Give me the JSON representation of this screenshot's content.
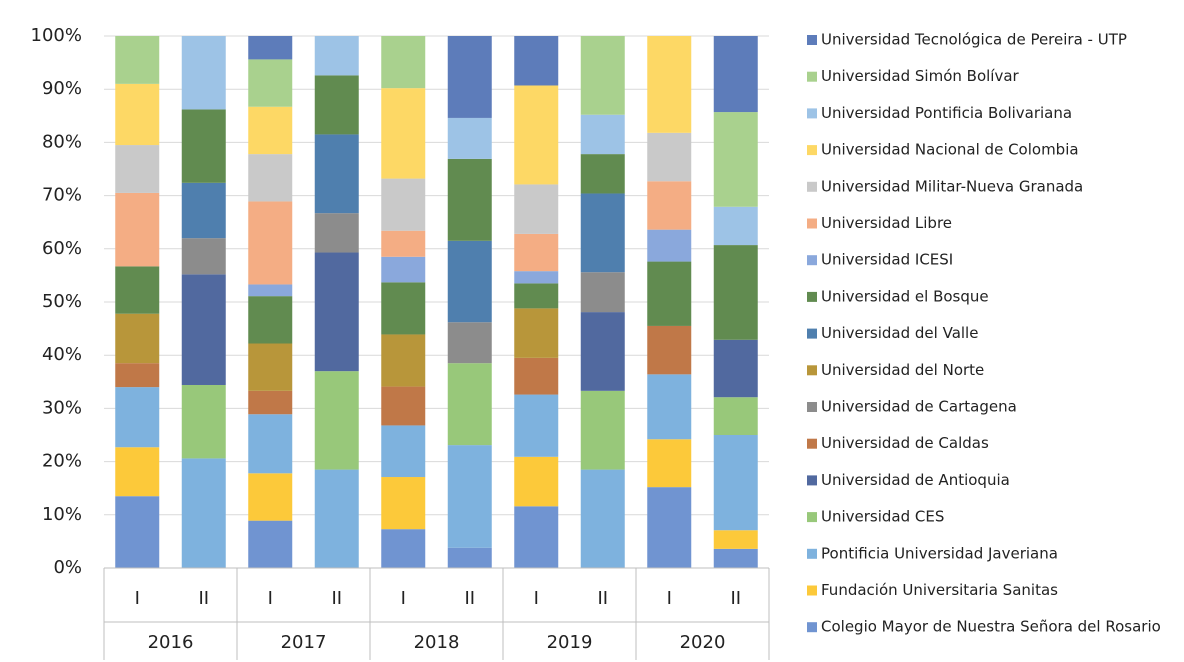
{
  "chart_data": {
    "type": "stacked-bar-100",
    "categories": [
      "I",
      "II",
      "I",
      "II",
      "I",
      "II",
      "I",
      "II",
      "I",
      "II"
    ],
    "groups": [
      "2016",
      "2017",
      "2018",
      "2019",
      "2020"
    ],
    "ylim": [
      0,
      100
    ],
    "yticks": [
      {
        "value": 0,
        "label": "0%"
      },
      {
        "value": 10,
        "label": "10%"
      },
      {
        "value": 20,
        "label": "20%"
      },
      {
        "value": 30,
        "label": "30%"
      },
      {
        "value": 40,
        "label": "40%"
      },
      {
        "value": 50,
        "label": "50%"
      },
      {
        "value": 60,
        "label": "60%"
      },
      {
        "value": 70,
        "label": "70%"
      },
      {
        "value": 80,
        "label": "80%"
      },
      {
        "value": 90,
        "label": "90%"
      },
      {
        "value": 100,
        "label": "100%"
      }
    ],
    "grid": true,
    "legend": "right",
    "series": [
      {
        "name": "Colegio Mayor de Nuestra Señora del Rosario",
        "color": "#7094d1",
        "values": [
          13.5,
          0,
          8.9,
          0,
          7.3,
          3.8,
          11.6,
          0,
          15.2,
          3.6
        ]
      },
      {
        "name": "Fundación Universitaria Sanitas",
        "color": "#fcc93a",
        "values": [
          9.2,
          0,
          8.9,
          0,
          9.8,
          0,
          9.3,
          0,
          9,
          3.5
        ]
      },
      {
        "name": "Pontificia Universidad Javeriana",
        "color": "#7eb2de",
        "values": [
          11.3,
          20.6,
          11.1,
          18.5,
          9.7,
          19.3,
          11.7,
          18.5,
          12.2,
          17.9
        ]
      },
      {
        "name": "Universidad CES",
        "color": "#98c87a",
        "values": [
          0,
          13.8,
          0,
          18.5,
          0,
          15.4,
          0,
          14.8,
          0,
          7.1
        ]
      },
      {
        "name": "Universidad de Antioquia",
        "color": "#51699f",
        "values": [
          0,
          20.8,
          0,
          22.3,
          0,
          0,
          0,
          14.8,
          0,
          10.8
        ]
      },
      {
        "name": "Universidad de Caldas",
        "color": "#c07848",
        "values": [
          4.5,
          0,
          4.4,
          0,
          7.3,
          0,
          6.9,
          0,
          9.1,
          0
        ]
      },
      {
        "name": "Universidad de Cartagena",
        "color": "#8c8c8c",
        "values": [
          0,
          6.8,
          0,
          7.4,
          0,
          7.7,
          0,
          7.5,
          0,
          0
        ]
      },
      {
        "name": "Universidad del Norte",
        "color": "#b8963a",
        "values": [
          9.3,
          0,
          8.9,
          0,
          9.8,
          0,
          9.3,
          0,
          0,
          0
        ]
      },
      {
        "name": "Universidad del Valle",
        "color": "#4f7fae",
        "values": [
          0,
          10.4,
          0,
          14.8,
          0,
          15.3,
          0,
          14.8,
          0,
          0
        ]
      },
      {
        "name": "Universidad el Bosque",
        "color": "#618b50",
        "values": [
          8.9,
          13.8,
          8.9,
          11.1,
          9.8,
          15.4,
          4.7,
          7.4,
          12.1,
          17.8
        ]
      },
      {
        "name": "Universidad ICESI",
        "color": "#8aa8dc",
        "values": [
          0,
          0,
          2.2,
          0,
          4.8,
          0,
          2.3,
          0,
          6,
          0
        ]
      },
      {
        "name": "Universidad Libre",
        "color": "#f4ad84",
        "values": [
          13.8,
          0,
          15.6,
          0,
          4.9,
          0,
          7,
          0,
          9.1,
          0
        ]
      },
      {
        "name": "Universidad Militar-Nueva Granada",
        "color": "#c9c9c9",
        "values": [
          9,
          0,
          8.9,
          0,
          9.8,
          0,
          9.3,
          0,
          9.1,
          0
        ]
      },
      {
        "name": "Universidad Nacional de Colombia",
        "color": "#fdd865",
        "values": [
          11.5,
          0,
          8.9,
          0,
          17,
          0,
          18.6,
          0,
          18.2,
          0
        ]
      },
      {
        "name": "Universidad Pontificia Bolivariana",
        "color": "#9dc3e6",
        "values": [
          0,
          13.8,
          0,
          7.4,
          0,
          7.7,
          0,
          7.4,
          0,
          7.2
        ]
      },
      {
        "name": "Universidad Simón Bolívar",
        "color": "#a9d18e",
        "values": [
          9,
          0,
          8.9,
          0,
          9.8,
          0,
          0,
          14.8,
          0,
          17.8
        ]
      },
      {
        "name": "Universidad Tecnológica de Pereira - UTP",
        "color": "#5d7cba",
        "values": [
          0,
          0,
          4.4,
          0,
          0,
          15.4,
          9.3,
          0,
          0,
          14.3
        ]
      }
    ]
  }
}
